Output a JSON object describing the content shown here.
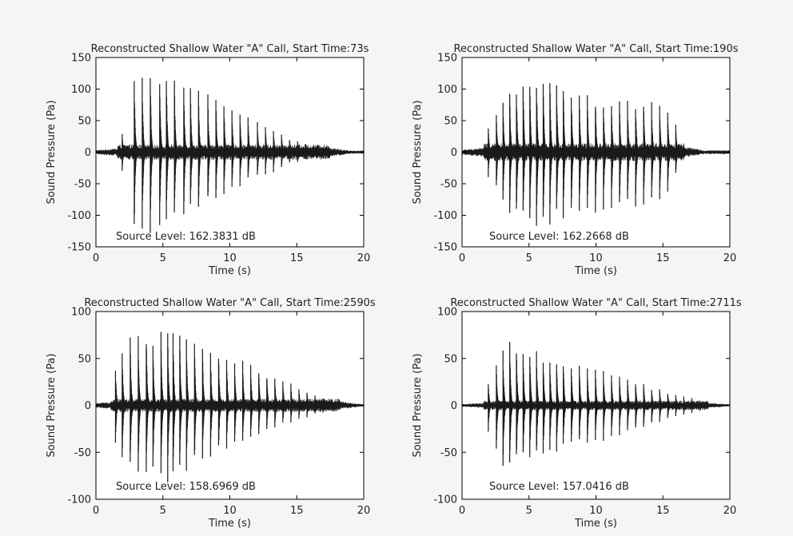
{
  "figure": {
    "background": "#f5f5f3",
    "plot_background": "#ffffff",
    "axis_color": "#000000",
    "trace_color": "#1a1a1a"
  },
  "chart_data": [
    {
      "type": "line",
      "title": "Reconstructed Shallow Water \"A\" Call, Start Time:73s",
      "xlabel": "Time (s)",
      "ylabel": "Sound Pressure (Pa)",
      "annotation": "Source Level: 162.3831 dB",
      "xlim": [
        0,
        20
      ],
      "ylim": [
        -150,
        150
      ],
      "xticks": [
        0,
        5,
        10,
        15,
        20
      ],
      "yticks": [
        -150,
        -100,
        -50,
        0,
        50,
        100,
        150
      ],
      "grid": false,
      "background_noise_amplitude": 12,
      "series": [
        {
          "pulse_times_s": [
            2.0,
            2.9,
            3.5,
            4.1,
            4.8,
            5.3,
            5.9,
            6.6,
            7.1,
            7.7,
            8.4,
            9.0,
            9.6,
            10.2,
            10.8,
            11.4,
            12.1,
            12.7,
            13.3,
            13.9,
            14.5,
            15.1,
            15.7,
            16.3,
            16.9
          ],
          "pulse_peak_max_pa": [
            30,
            128,
            125,
            130,
            132,
            128,
            120,
            112,
            106,
            100,
            93,
            86,
            80,
            72,
            66,
            58,
            50,
            42,
            35,
            30,
            24,
            20,
            15,
            11,
            8
          ],
          "pulse_peak_min_pa": [
            -30,
            -128,
            -125,
            -128,
            -125,
            -118,
            -110,
            -104,
            -98,
            -92,
            -86,
            -78,
            -70,
            -62,
            -55,
            -48,
            -42,
            -36,
            -32,
            -26,
            -20,
            -16,
            -12,
            -9,
            -7
          ]
        }
      ]
    },
    {
      "type": "line",
      "title": "Reconstructed Shallow Water \"A\" Call, Start Time:190s",
      "xlabel": "Time (s)",
      "ylabel": "Sound Pressure (Pa)",
      "annotation": "Source Level: 162.2668 dB",
      "xlim": [
        0,
        20
      ],
      "ylim": [
        -150,
        150
      ],
      "xticks": [
        0,
        5,
        10,
        15,
        20
      ],
      "yticks": [
        -150,
        -100,
        -50,
        0,
        50,
        100,
        150
      ],
      "grid": false,
      "background_noise_amplitude": 14,
      "series": [
        {
          "pulse_times_s": [
            2.0,
            2.6,
            3.1,
            3.6,
            4.1,
            4.6,
            5.1,
            5.6,
            6.1,
            6.6,
            7.1,
            7.6,
            8.2,
            8.8,
            9.4,
            10.0,
            10.6,
            11.2,
            11.8,
            12.4,
            13.0,
            13.6,
            14.2,
            14.8,
            15.4,
            16.0
          ],
          "pulse_peak_max_pa": [
            40,
            65,
            82,
            100,
            112,
            118,
            122,
            126,
            128,
            125,
            120,
            112,
            105,
            97,
            92,
            88,
            86,
            84,
            84,
            82,
            85,
            82,
            80,
            75,
            70,
            45
          ],
          "pulse_peak_min_pa": [
            -40,
            -65,
            -85,
            -100,
            -110,
            -115,
            -118,
            -120,
            -118,
            -115,
            -112,
            -108,
            -104,
            -100,
            -98,
            -96,
            -94,
            -92,
            -92,
            -90,
            -90,
            -88,
            -85,
            -78,
            -70,
            -40
          ]
        }
      ]
    },
    {
      "type": "line",
      "title": "Reconstructed Shallow Water \"A\" Call, Start Time:2590s",
      "xlabel": "Time (s)",
      "ylabel": "Sound Pressure (Pa)",
      "annotation": "Source Level: 158.6969 dB",
      "xlim": [
        0,
        20
      ],
      "ylim": [
        -100,
        100
      ],
      "xticks": [
        0,
        5,
        10,
        15,
        20
      ],
      "yticks": [
        -100,
        -50,
        0,
        50,
        100
      ],
      "grid": false,
      "background_noise_amplitude": 7,
      "series": [
        {
          "pulse_times_s": [
            1.5,
            2.0,
            2.6,
            3.2,
            3.8,
            4.3,
            4.9,
            5.4,
            5.8,
            6.3,
            6.8,
            7.4,
            8.0,
            8.6,
            9.2,
            9.8,
            10.4,
            11.0,
            11.6,
            12.2,
            12.8,
            13.4,
            14.0,
            14.6,
            15.2,
            15.8,
            16.4,
            17.0,
            17.6
          ],
          "pulse_peak_max_pa": [
            40,
            60,
            75,
            78,
            80,
            72,
            82,
            85,
            82,
            76,
            72,
            68,
            64,
            60,
            58,
            55,
            50,
            48,
            45,
            40,
            36,
            32,
            28,
            24,
            20,
            16,
            12,
            9,
            6
          ],
          "pulse_peak_min_pa": [
            -40,
            -60,
            -75,
            -76,
            -78,
            -72,
            -80,
            -82,
            -78,
            -74,
            -70,
            -65,
            -60,
            -56,
            -52,
            -48,
            -44,
            -40,
            -36,
            -32,
            -28,
            -25,
            -22,
            -19,
            -16,
            -13,
            -10,
            -8,
            -6
          ]
        }
      ]
    },
    {
      "type": "line",
      "title": "Reconstructed Shallow Water \"A\" Call, Start Time:2711s",
      "xlabel": "Time (s)",
      "ylabel": "Sound Pressure (Pa)",
      "annotation": "Source Level: 157.0416 dB",
      "xlim": [
        0,
        20
      ],
      "ylim": [
        -100,
        100
      ],
      "xticks": [
        0,
        5,
        10,
        15,
        20
      ],
      "yticks": [
        -100,
        -50,
        0,
        50,
        100
      ],
      "grid": false,
      "background_noise_amplitude": 5,
      "series": [
        {
          "pulse_times_s": [
            2.0,
            2.6,
            3.1,
            3.6,
            4.1,
            4.6,
            5.1,
            5.6,
            6.1,
            6.6,
            7.1,
            7.6,
            8.2,
            8.8,
            9.4,
            10.0,
            10.6,
            11.2,
            11.8,
            12.4,
            13.0,
            13.6,
            14.2,
            14.8,
            15.4,
            16.0,
            16.6,
            17.2,
            17.8
          ],
          "pulse_peak_max_pa": [
            25,
            45,
            60,
            70,
            68,
            62,
            60,
            58,
            55,
            52,
            50,
            48,
            46,
            45,
            42,
            40,
            38,
            35,
            32,
            30,
            28,
            25,
            20,
            18,
            15,
            12,
            10,
            8,
            6
          ],
          "pulse_peak_min_pa": [
            -28,
            -55,
            -70,
            -68,
            -65,
            -62,
            -60,
            -58,
            -55,
            -52,
            -50,
            -48,
            -46,
            -44,
            -42,
            -40,
            -38,
            -35,
            -32,
            -30,
            -28,
            -25,
            -22,
            -18,
            -15,
            -12,
            -10,
            -8,
            -6
          ]
        }
      ]
    }
  ]
}
